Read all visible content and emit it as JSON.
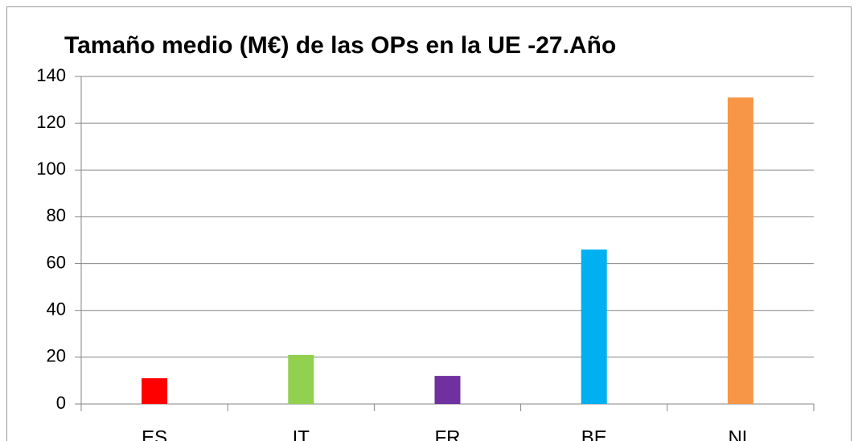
{
  "chart_data": {
    "type": "bar",
    "title": "Tamaño medio (M€) de las OPs en la UE -27.Año",
    "categories": [
      "ES",
      "IT",
      "FR",
      "BE",
      "NL"
    ],
    "values": [
      11,
      21,
      12,
      66,
      131
    ],
    "colors": [
      "#ff0000",
      "#92d050",
      "#7030a0",
      "#00b0f0",
      "#f79646"
    ],
    "ylim": [
      0,
      140
    ],
    "yticks": [
      0,
      20,
      40,
      60,
      80,
      100,
      120,
      140
    ],
    "grid": true
  }
}
